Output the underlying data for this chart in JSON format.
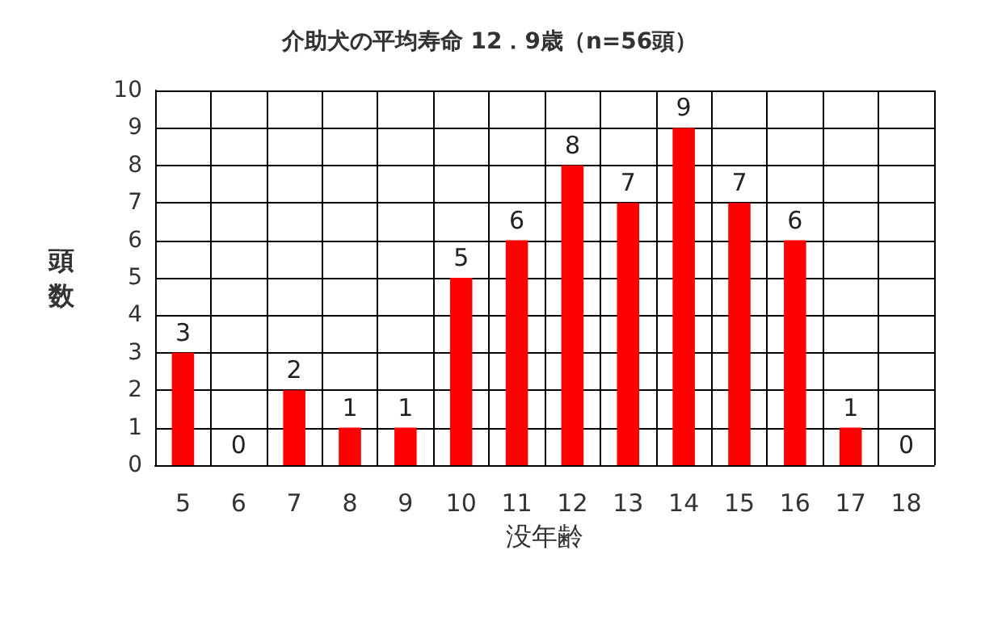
{
  "chart_data": {
    "type": "bar",
    "title": "介助犬の平均寿命 12．9歳（n=56頭）",
    "xlabel": "没年齢",
    "ylabel": "頭数",
    "categories": [
      "5",
      "6",
      "7",
      "8",
      "9",
      "10",
      "11",
      "12",
      "13",
      "14",
      "15",
      "16",
      "17",
      "18"
    ],
    "values": [
      3,
      0,
      2,
      1,
      1,
      5,
      6,
      8,
      7,
      9,
      7,
      6,
      1,
      0
    ],
    "color": "#ff0000",
    "ylim": [
      0,
      10
    ],
    "yticks": [
      0,
      1,
      2,
      3,
      4,
      5,
      6,
      7,
      8,
      9,
      10
    ],
    "grid": true,
    "data_labels": true
  }
}
